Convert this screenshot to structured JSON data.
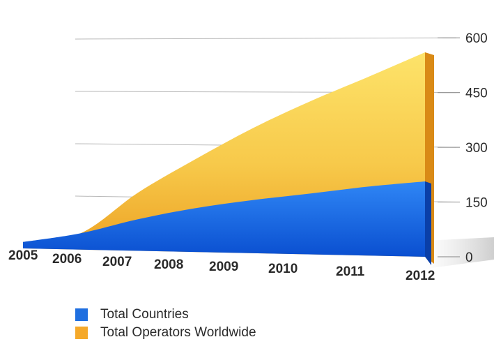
{
  "chart_data": {
    "type": "area",
    "categories": [
      "2005",
      "2006",
      "2007",
      "2008",
      "2009",
      "2010",
      "2011",
      "2012"
    ],
    "series": [
      {
        "name": "Total Countries",
        "values": [
          20,
          50,
          95,
          130,
          155,
          175,
          195,
          210
        ],
        "color": "#1f6fe0"
      },
      {
        "name": "Total Operators Worldwide",
        "values": [
          20,
          50,
          175,
          275,
          365,
          440,
          505,
          570
        ],
        "color": "#f5c842"
      }
    ],
    "y_ticks": [
      "0",
      "150",
      "300",
      "450",
      "600"
    ],
    "ylim": [
      0,
      600
    ],
    "grid": true,
    "legend_position": "bottom-left"
  }
}
